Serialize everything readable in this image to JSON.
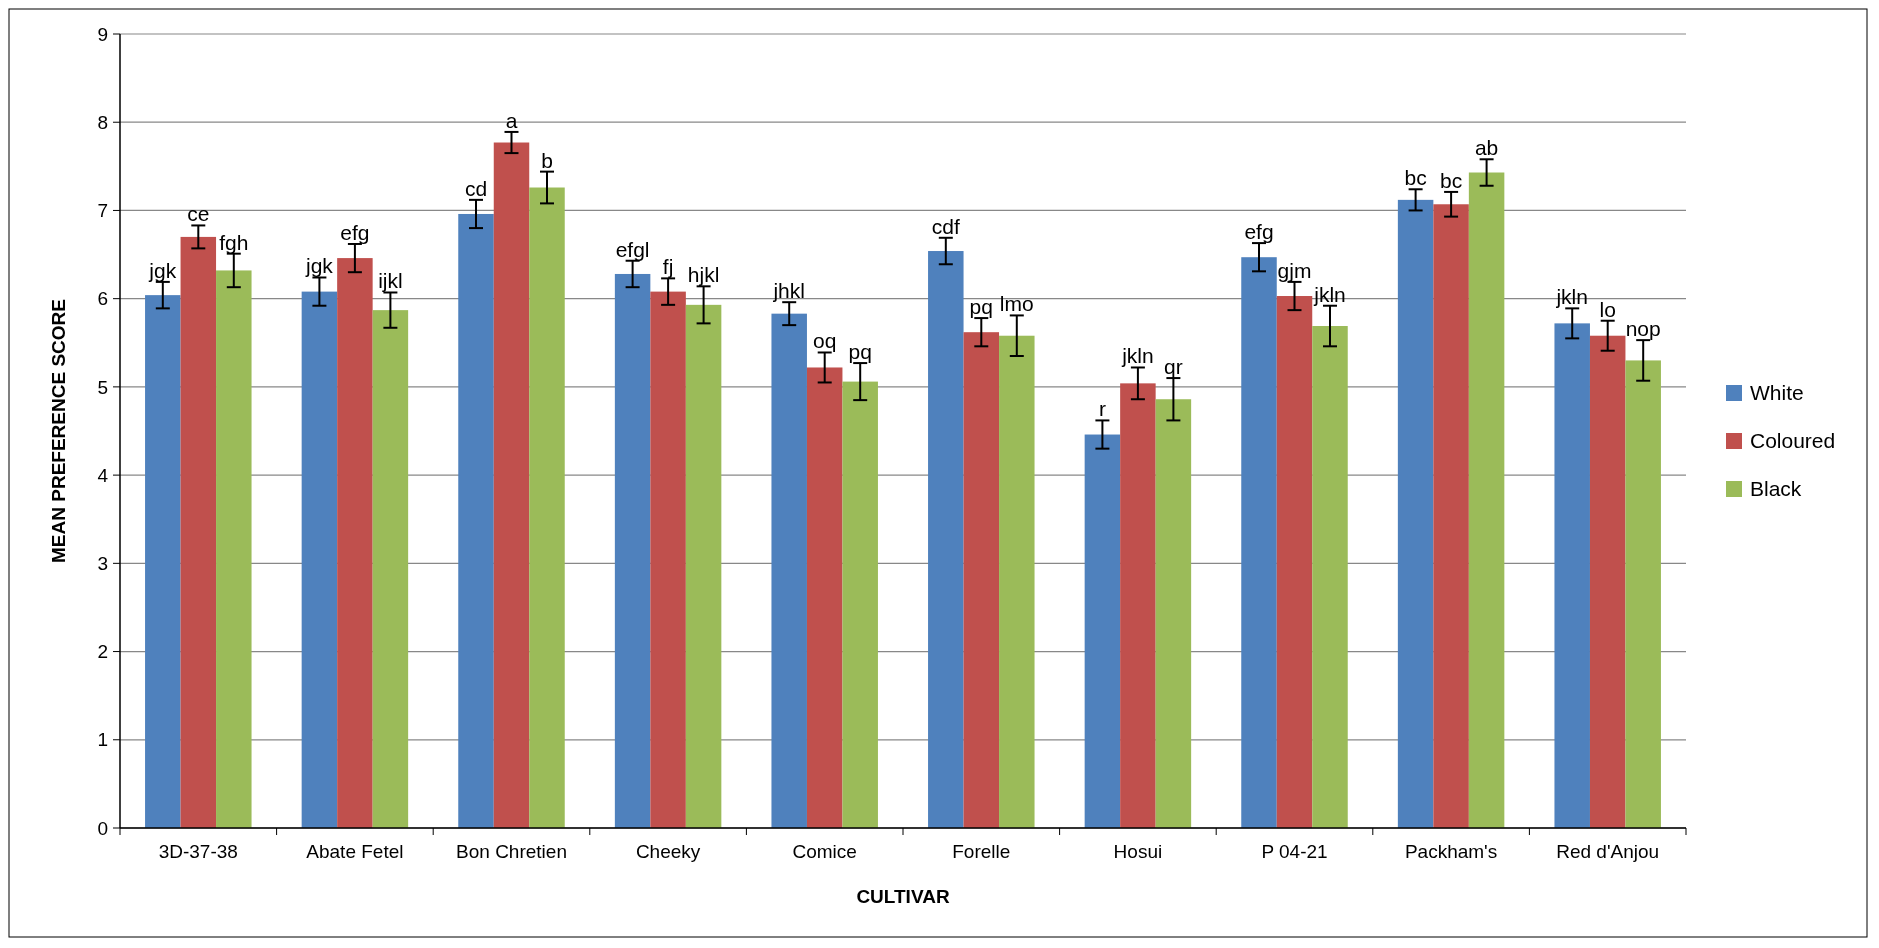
{
  "chart_data": {
    "type": "bar",
    "xlabel": "CULTIVAR",
    "ylabel": "MEAN PREFERENCE SCORE",
    "categories": [
      "3D-37-38",
      "Abate Fetel",
      "Bon Chretien",
      "Cheeky",
      "Comice",
      "Forelle",
      "Hosui",
      "P 04-21",
      "Packham's",
      "Red d'Anjou"
    ],
    "series": [
      {
        "name": "White",
        "color": "#4f81bd",
        "values": [
          6.04,
          6.08,
          6.96,
          6.28,
          5.83,
          6.54,
          4.46,
          6.47,
          7.12,
          5.72
        ],
        "errors": [
          0.15,
          0.16,
          0.16,
          0.15,
          0.13,
          0.15,
          0.16,
          0.16,
          0.12,
          0.17
        ],
        "value_labels": [
          "jgk",
          "jgk",
          "cd",
          "efgl",
          "jhkl",
          "cdf",
          "r",
          "efg",
          "bc",
          "jkln"
        ]
      },
      {
        "name": "Coloured",
        "color": "#c0504d",
        "values": [
          6.7,
          6.46,
          7.77,
          6.08,
          5.22,
          5.62,
          5.04,
          6.03,
          7.07,
          5.58
        ],
        "errors": [
          0.13,
          0.16,
          0.12,
          0.15,
          0.17,
          0.16,
          0.18,
          0.16,
          0.14,
          0.17
        ],
        "value_labels": [
          "ce",
          "efg",
          "a",
          "fj",
          "oq",
          "pq",
          "jkln",
          "gjm",
          "bc",
          "lo"
        ]
      },
      {
        "name": "Black",
        "color": "#9bbb59",
        "values": [
          6.32,
          5.87,
          7.26,
          5.93,
          5.06,
          5.58,
          4.86,
          5.69,
          7.43,
          5.3
        ],
        "errors": [
          0.19,
          0.2,
          0.18,
          0.21,
          0.21,
          0.23,
          0.24,
          0.23,
          0.15,
          0.23
        ],
        "value_labels": [
          "fgh",
          "ijkl",
          "b",
          "hjkl",
          "pq",
          "lmo",
          "qr",
          "jkln",
          "ab",
          "nop"
        ]
      }
    ],
    "ylim": [
      0,
      9
    ],
    "yticks": [
      0,
      1,
      2,
      3,
      4,
      5,
      6,
      7,
      8,
      9
    ],
    "grid": "y",
    "legend": "right"
  }
}
